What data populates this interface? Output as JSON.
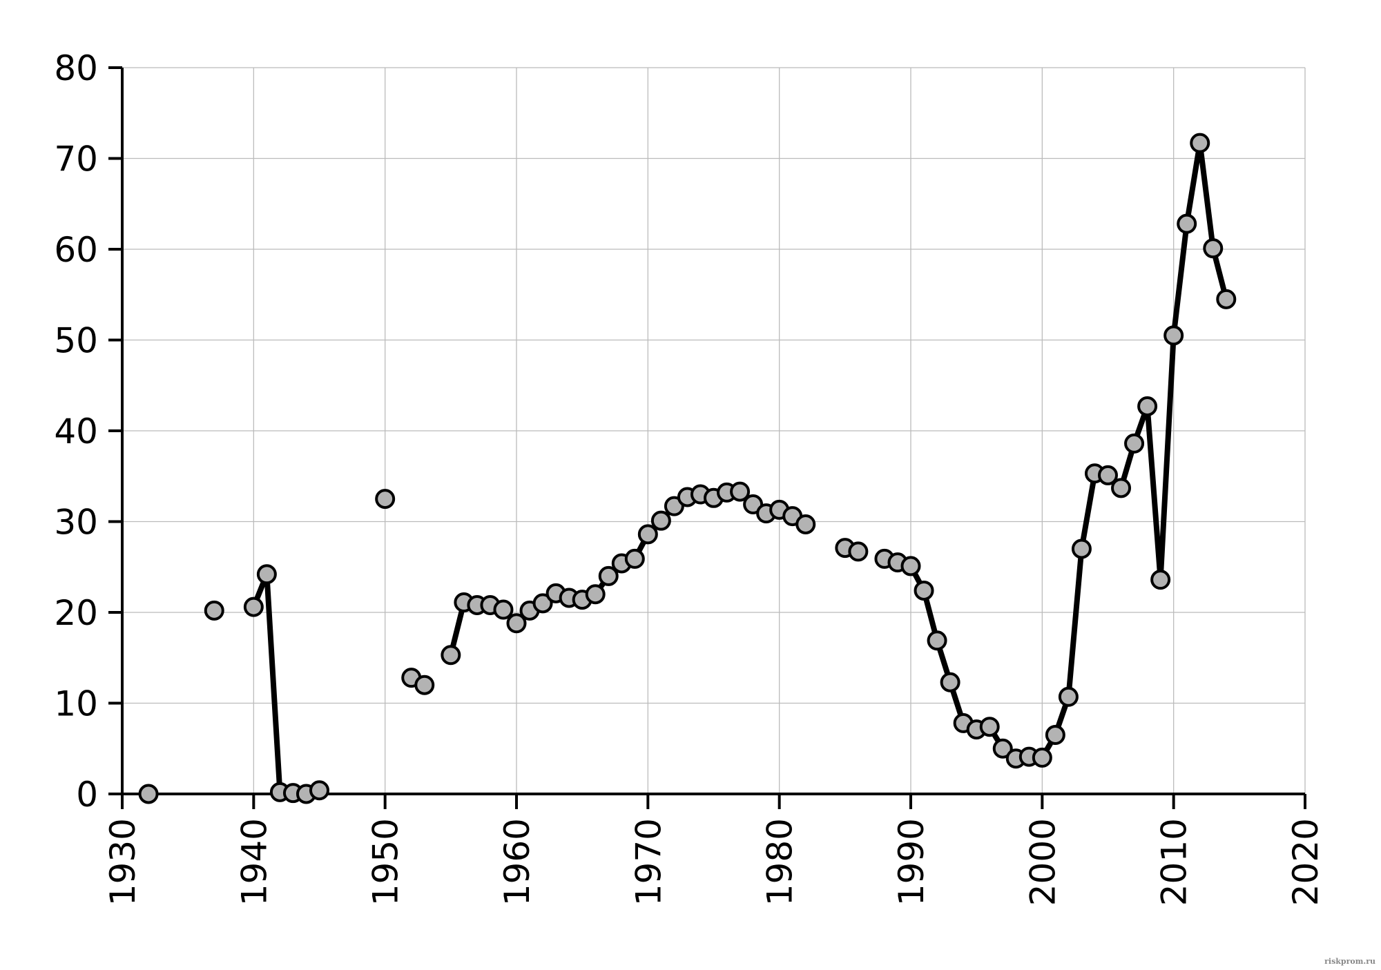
{
  "chart_data": {
    "type": "line",
    "title": "",
    "xlabel": "",
    "ylabel": "",
    "xlim": [
      1930,
      2020
    ],
    "ylim": [
      0,
      80
    ],
    "x_ticks": [
      1930,
      1940,
      1950,
      1960,
      1970,
      1980,
      1990,
      2000,
      2010,
      2020
    ],
    "y_ticks": [
      0,
      10,
      20,
      30,
      40,
      50,
      60,
      70,
      80
    ],
    "grid": true,
    "legend": "none",
    "marker": "circle",
    "colors": {
      "line": "#000000",
      "marker_fill": "#b3b3b3",
      "marker_edge": "#000000",
      "grid": "#bbbbbb"
    },
    "segments": [
      [
        [
          1932,
          0.0
        ]
      ],
      [
        [
          1937,
          20.2
        ]
      ],
      [
        [
          1940,
          20.6
        ],
        [
          1941,
          24.2
        ],
        [
          1942,
          0.2
        ],
        [
          1943,
          0.1
        ],
        [
          1944,
          0.0
        ],
        [
          1945,
          0.4
        ]
      ],
      [
        [
          1950,
          32.5
        ]
      ],
      [
        [
          1952,
          12.8
        ]
      ],
      [
        [
          1953,
          12.0
        ]
      ],
      [
        [
          1955,
          15.3
        ],
        [
          1956,
          21.1
        ],
        [
          1957,
          20.8
        ],
        [
          1958,
          20.8
        ],
        [
          1959,
          20.3
        ],
        [
          1960,
          18.8
        ],
        [
          1961,
          20.2
        ],
        [
          1962,
          21.0
        ],
        [
          1963,
          22.1
        ],
        [
          1964,
          21.6
        ],
        [
          1965,
          21.4
        ],
        [
          1966,
          22.0
        ],
        [
          1967,
          24.0
        ],
        [
          1968,
          25.4
        ],
        [
          1969,
          25.9
        ],
        [
          1970,
          28.6
        ],
        [
          1971,
          30.1
        ],
        [
          1972,
          31.7
        ],
        [
          1973,
          32.7
        ],
        [
          1974,
          33.0
        ],
        [
          1975,
          32.6
        ],
        [
          1976,
          33.2
        ],
        [
          1977,
          33.3
        ],
        [
          1978,
          31.9
        ],
        [
          1979,
          30.9
        ],
        [
          1980,
          31.3
        ],
        [
          1981,
          30.6
        ],
        [
          1982,
          29.7
        ]
      ],
      [
        [
          1985,
          27.1
        ],
        [
          1986,
          26.7
        ]
      ],
      [
        [
          1988,
          25.9
        ],
        [
          1989,
          25.5
        ],
        [
          1990,
          25.1
        ],
        [
          1991,
          22.4
        ],
        [
          1992,
          16.9
        ],
        [
          1993,
          12.3
        ],
        [
          1994,
          7.8
        ],
        [
          1995,
          7.1
        ],
        [
          1996,
          7.4
        ],
        [
          1997,
          5.0
        ],
        [
          1998,
          3.9
        ],
        [
          1999,
          4.1
        ],
        [
          2000,
          4.0
        ],
        [
          2001,
          6.5
        ],
        [
          2002,
          10.7
        ],
        [
          2003,
          27.0
        ],
        [
          2004,
          35.3
        ],
        [
          2005,
          35.1
        ],
        [
          2006,
          33.7
        ],
        [
          2007,
          38.6
        ],
        [
          2008,
          42.7
        ],
        [
          2009,
          23.6
        ],
        [
          2010,
          50.5
        ],
        [
          2011,
          62.8
        ],
        [
          2012,
          71.7
        ],
        [
          2013,
          60.1
        ],
        [
          2014,
          54.5
        ]
      ]
    ]
  },
  "watermark": "riskprom.ru"
}
